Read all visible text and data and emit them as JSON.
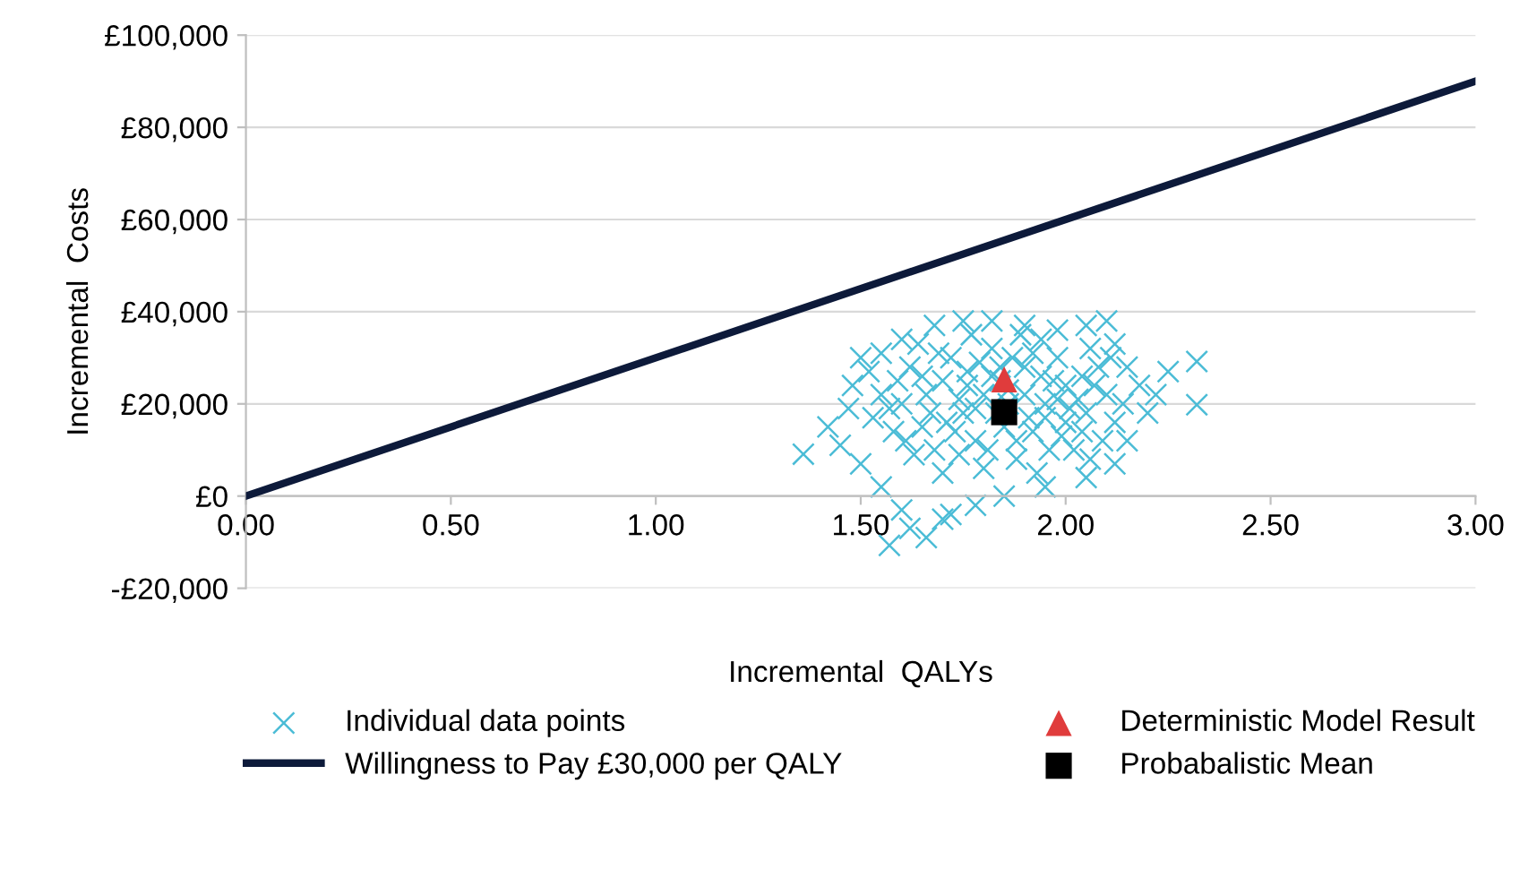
{
  "chart_data": {
    "type": "scatter",
    "xlabel": "Incremental  QALYs",
    "ylabel": "Incremental  Costs",
    "xlim": [
      0,
      3
    ],
    "ylim": [
      -20000,
      100000
    ],
    "xticks": [
      {
        "value": 0,
        "label": "0.00"
      },
      {
        "value": 0.5,
        "label": "0.50"
      },
      {
        "value": 1,
        "label": "1.00"
      },
      {
        "value": 1.5,
        "label": "1.50"
      },
      {
        "value": 2,
        "label": "2.00"
      },
      {
        "value": 2.5,
        "label": "2.50"
      },
      {
        "value": 3,
        "label": "3.00"
      }
    ],
    "yticks": [
      {
        "value": -20000,
        "label": "-£20,000"
      },
      {
        "value": 0,
        "label": "£0"
      },
      {
        "value": 20000,
        "label": "£20,000"
      },
      {
        "value": 40000,
        "label": "£40,000"
      },
      {
        "value": 60000,
        "label": "£60,000"
      },
      {
        "value": 80000,
        "label": "£80,000"
      },
      {
        "value": 100000,
        "label": "£100,000"
      }
    ],
    "grid": "y",
    "legend": "bottom",
    "series": [
      {
        "name": "Individual data points",
        "marker": "cross",
        "color": "#4bbcd6",
        "x": [
          1.5,
          1.52,
          1.55,
          1.6,
          1.68,
          1.75,
          1.82,
          1.9,
          1.98,
          2.05,
          2.1,
          2.12,
          2.15,
          2.18,
          2.2,
          2.15,
          2.12,
          2.05,
          1.95,
          1.85,
          1.78,
          1.7,
          1.62,
          1.57,
          1.6,
          1.55,
          1.5,
          1.45,
          1.42,
          1.47,
          1.48,
          1.36,
          2.32,
          2.32,
          2.25,
          2.22,
          1.66,
          1.72,
          1.6,
          1.65,
          1.7,
          1.75,
          1.8,
          1.85,
          1.9,
          1.95,
          2.0,
          2.05,
          2.1,
          1.62,
          1.68,
          1.72,
          1.78,
          1.82,
          1.88,
          1.92,
          1.98,
          2.02,
          2.08,
          1.55,
          1.58,
          1.64,
          1.7,
          1.76,
          1.84,
          1.86,
          1.94,
          2.0,
          2.06,
          2.12,
          1.66,
          1.74,
          1.8,
          1.9,
          1.96,
          2.04,
          1.53,
          1.59,
          1.67,
          1.73,
          1.79,
          1.83,
          1.87,
          1.91,
          1.97,
          2.03,
          2.09,
          2.14,
          1.63,
          1.69,
          1.77,
          1.81,
          1.89,
          1.93,
          1.99,
          2.07,
          2.11,
          1.57,
          1.71,
          1.76,
          1.84,
          1.88,
          1.94,
          2.01,
          2.06,
          1.65,
          1.78,
          1.86,
          1.92,
          1.98,
          2.04,
          1.61,
          1.74,
          1.82,
          1.95
        ],
        "values": [
          30000,
          27000,
          31000,
          34000,
          37000,
          38000,
          38000,
          37000,
          36000,
          37000,
          38000,
          33000,
          28000,
          24000,
          18000,
          12000,
          7000,
          4000,
          2000,
          0,
          -2000,
          -5000,
          -7000,
          -10700,
          -3000,
          2000,
          7000,
          11000,
          15000,
          19000,
          24000,
          9100,
          29200,
          19800,
          27000,
          22000,
          -9000,
          -4000,
          20000,
          15000,
          25000,
          18000,
          22000,
          15000,
          28000,
          20000,
          24000,
          18000,
          22000,
          28000,
          10000,
          30000,
          12000,
          32000,
          8000,
          14000,
          30000,
          10000,
          28000,
          22000,
          14000,
          33000,
          5000,
          27000,
          25000,
          20000,
          34000,
          16000,
          32000,
          16000,
          22000,
          21000,
          6000,
          22000,
          10000,
          26000,
          17000,
          25000,
          18000,
          14000,
          29000,
          18000,
          30000,
          17000,
          25000,
          21000,
          12000,
          20000,
          9000,
          31000,
          35000,
          10000,
          35000,
          5000,
          13000,
          24000,
          30000,
          19000,
          16000,
          24000,
          28000,
          12000,
          26000,
          19000,
          8000,
          26000,
          19000,
          23000,
          31000,
          21000,
          14000,
          12000,
          9000,
          26000,
          17000
        ]
      },
      {
        "name": "Willingness to Pay £30,000 per QALY",
        "type": "line",
        "marker": "none",
        "line_style": "solid",
        "color": "#0d1a3a",
        "x": [
          0,
          3
        ],
        "values": [
          0,
          90000
        ]
      },
      {
        "name": "Deterministic Model Result",
        "marker": "triangle",
        "color": "#e03c3c",
        "x": [
          1.85
        ],
        "values": [
          25300
        ]
      },
      {
        "name": "Probabalistic Mean",
        "marker": "square",
        "color": "#000000",
        "x": [
          1.85
        ],
        "values": [
          18200
        ]
      }
    ]
  }
}
